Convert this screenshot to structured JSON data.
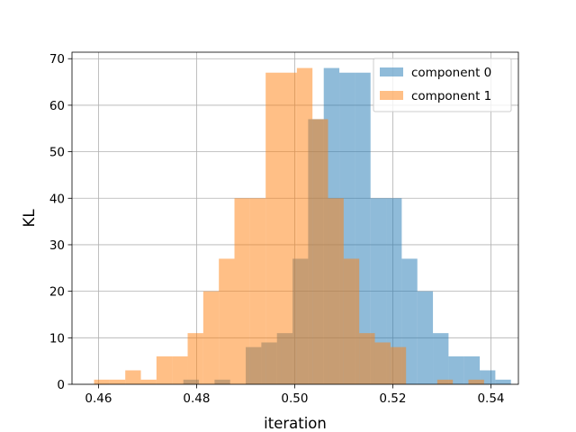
{
  "chart_data": {
    "type": "bar",
    "xlabel": "iteration",
    "ylabel": "KL",
    "xlim": [
      0.4546,
      0.5456
    ],
    "ylim": [
      0,
      71.4
    ],
    "grid": true,
    "legend_position": "top-right",
    "x_ticks": [
      {
        "value": 0.46,
        "label": "0.46"
      },
      {
        "value": 0.48,
        "label": "0.48"
      },
      {
        "value": 0.5,
        "label": "0.50"
      },
      {
        "value": 0.52,
        "label": "0.52"
      },
      {
        "value": 0.54,
        "label": "0.54"
      }
    ],
    "y_ticks": [
      {
        "value": 0,
        "label": "0"
      },
      {
        "value": 10,
        "label": "10"
      },
      {
        "value": 20,
        "label": "20"
      },
      {
        "value": 30,
        "label": "30"
      },
      {
        "value": 40,
        "label": "40"
      },
      {
        "value": 50,
        "label": "50"
      },
      {
        "value": 60,
        "label": "60"
      },
      {
        "value": 70,
        "label": "70"
      }
    ],
    "series": [
      {
        "name": "component 0",
        "color": "#1f77b4",
        "alpha": 0.5,
        "bin_start": 0.4773,
        "bin_width": 0.00318,
        "counts": [
          1,
          0,
          1,
          0,
          8,
          9,
          11,
          27,
          57,
          68,
          67,
          67,
          40,
          40,
          27,
          20,
          11,
          6,
          6,
          3,
          1
        ]
      },
      {
        "name": "component 1",
        "color": "#ff7f0e",
        "alpha": 0.5,
        "bin_start": 0.4591,
        "bin_width": 0.00318,
        "counts": [
          1,
          1,
          3,
          1,
          6,
          6,
          11,
          20,
          27,
          40,
          40,
          67,
          67,
          68,
          57,
          40,
          27,
          11,
          9,
          8,
          0,
          0,
          1,
          0,
          1
        ]
      }
    ]
  }
}
